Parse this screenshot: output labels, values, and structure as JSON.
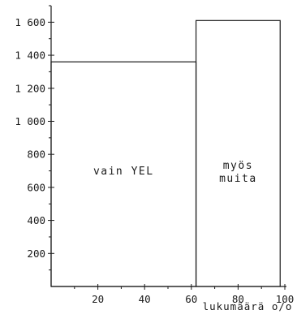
{
  "chart_data": {
    "type": "bar",
    "subtype": "variable-width (marimekko)",
    "title": "",
    "xlabel": "lukumäärä o/o",
    "ylabel": "",
    "xlim": [
      0,
      100
    ],
    "ylim": [
      0,
      1700
    ],
    "x_ticks": [
      20,
      40,
      60,
      80,
      100
    ],
    "y_ticks": [
      200,
      400,
      600,
      800,
      1000,
      1200,
      1400,
      1600
    ],
    "x_tick_labels": [
      "20",
      "40",
      "60",
      "80",
      "100"
    ],
    "y_tick_labels": [
      "200",
      "400",
      "600",
      "800",
      "1 000",
      "1 200",
      "1 400",
      "1 600"
    ],
    "grid": false,
    "legend": "none",
    "bars": [
      {
        "label_lines": [
          "vain YEL"
        ],
        "x_start": 0,
        "x_end": 62,
        "value": 1360
      },
      {
        "label_lines": [
          "myös",
          "muita"
        ],
        "x_start": 62,
        "x_end": 98,
        "value": 1610
      }
    ]
  },
  "colors": {
    "ink": "#1a1a1a",
    "background": "#ffffff"
  }
}
